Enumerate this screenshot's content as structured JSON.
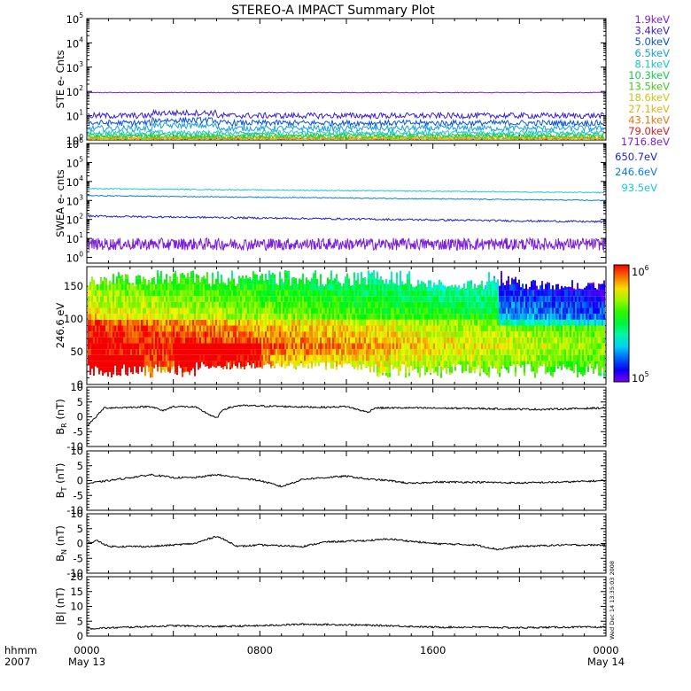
{
  "title": "STEREO-A IMPACT Summary Plot",
  "time_axis": {
    "row1_labels": [
      "0000",
      "0800",
      "1600",
      "0000"
    ],
    "row2_labels": [
      "May 13",
      "",
      "",
      "May 14"
    ],
    "hours": [
      0,
      8,
      16,
      24
    ],
    "corner_top": "hhmm",
    "corner_bottom": "2007"
  },
  "stamp": "Wed Dec 14 13:35:03 2008",
  "colors": {
    "ste_legend": [
      "#7b1fd9",
      "#3a1fd0",
      "#0a52d6",
      "#1a9fd8",
      "#18c8c8",
      "#19c84a",
      "#44c81e",
      "#c8c81e",
      "#e2b41a",
      "#e27a12",
      "#d81e1e"
    ],
    "swea_legend": [
      "#7b1fd9",
      "#1a1fd0",
      "#0a7ee0",
      "#18c8d8"
    ]
  },
  "chart_data": [
    {
      "panel": "STE",
      "type": "line",
      "ylabel": "STE e- Cnts",
      "yscale": "log",
      "ylim": [
        1,
        100000
      ],
      "y_ticks": [
        {
          "b": "10",
          "e": "0"
        },
        {
          "b": "10",
          "e": "1"
        },
        {
          "b": "10",
          "e": "2"
        },
        {
          "b": "10",
          "e": "3"
        },
        {
          "b": "10",
          "e": "4"
        },
        {
          "b": "10",
          "e": "5"
        }
      ],
      "series": [
        {
          "name": "1.9keV",
          "value": 90
        },
        {
          "name": "3.4keV",
          "value": 10
        },
        {
          "name": "5.0keV",
          "value": 5
        },
        {
          "name": "6.5keV",
          "value": 3
        },
        {
          "name": "8.1keV",
          "value": 2
        },
        {
          "name": "10.3keV",
          "value": 1.6
        },
        {
          "name": "13.5keV",
          "value": 1.35
        },
        {
          "name": "18.6keV",
          "value": 1.2
        },
        {
          "name": "27.1keV",
          "value": 1.1
        },
        {
          "name": "43.1keV",
          "value": 1.05
        },
        {
          "name": "79.0keV",
          "value": 1.0
        }
      ]
    },
    {
      "panel": "SWEA",
      "type": "line",
      "ylabel": "SWEA e- cnts",
      "yscale": "log",
      "ylim": [
        0.5,
        1000000
      ],
      "y_ticks": [
        {
          "b": "10",
          "e": "0"
        },
        {
          "b": "10",
          "e": "1"
        },
        {
          "b": "10",
          "e": "2"
        },
        {
          "b": "10",
          "e": "3"
        },
        {
          "b": "10",
          "e": "4"
        },
        {
          "b": "10",
          "e": "5"
        },
        {
          "b": "10",
          "e": "6"
        }
      ],
      "series": [
        {
          "name": "1716.8eV",
          "start": 5,
          "end": 5
        },
        {
          "name": "650.7eV",
          "start": 150,
          "end": 75
        },
        {
          "name": "246.6eV",
          "start": 1800,
          "end": 1000
        },
        {
          "name": "93.5eV",
          "start": 4200,
          "end": 2600
        }
      ]
    },
    {
      "panel": "pitch-angle",
      "type": "heatmap",
      "ylabel": "246.6 eV",
      "ylim": [
        0,
        180
      ],
      "y_ticks": [
        "0",
        "50",
        "100",
        "150"
      ],
      "colorbar_labels": [
        {
          "b": "10",
          "e": "6"
        },
        {
          "b": "10",
          "e": "5"
        }
      ],
      "colorbar_log_range": [
        5,
        6
      ]
    },
    {
      "panel": "BR",
      "type": "line",
      "ylabel": {
        "base": "B",
        "sub": "R",
        "unit": " (nT)"
      },
      "ylim": [
        -10,
        10
      ],
      "y_ticks": [
        "-10",
        "-5",
        "0",
        "5",
        "10"
      ],
      "points": [
        [
          0,
          -3
        ],
        [
          0.3,
          -1
        ],
        [
          0.8,
          3
        ],
        [
          2,
          3.2
        ],
        [
          3,
          3.5
        ],
        [
          3.5,
          2
        ],
        [
          4,
          3.5
        ],
        [
          5,
          3.3
        ],
        [
          6,
          -0.5
        ],
        [
          6.3,
          2.5
        ],
        [
          7,
          3.8
        ],
        [
          9,
          3.5
        ],
        [
          11,
          3.2
        ],
        [
          12,
          3.5
        ],
        [
          13,
          1.5
        ],
        [
          13.3,
          3
        ],
        [
          15,
          3
        ],
        [
          18,
          2.8
        ],
        [
          21,
          2.5
        ],
        [
          24,
          3
        ]
      ]
    },
    {
      "panel": "BT",
      "type": "line",
      "ylabel": {
        "base": "B",
        "sub": "T",
        "unit": " (nT)"
      },
      "ylim": [
        -10,
        10
      ],
      "y_ticks": [
        "-10",
        "-5",
        "0",
        "5",
        "10"
      ],
      "points": [
        [
          0,
          -1
        ],
        [
          1,
          0
        ],
        [
          2,
          1
        ],
        [
          3,
          2
        ],
        [
          4,
          1
        ],
        [
          5,
          1
        ],
        [
          6,
          2
        ],
        [
          7,
          1
        ],
        [
          8,
          0
        ],
        [
          9,
          -2
        ],
        [
          10,
          0.5
        ],
        [
          11,
          1
        ],
        [
          12,
          1.5
        ],
        [
          13,
          0.5
        ],
        [
          14,
          0
        ],
        [
          15,
          -1
        ],
        [
          16,
          -0.5
        ],
        [
          18,
          -0.5
        ],
        [
          20,
          -0.8
        ],
        [
          22,
          -0.5
        ],
        [
          24,
          0
        ]
      ]
    },
    {
      "panel": "BN",
      "type": "line",
      "ylabel": {
        "base": "B",
        "sub": "N",
        "unit": " (nT)"
      },
      "ylim": [
        -10,
        10
      ],
      "y_ticks": [
        "-10",
        "-5",
        "0",
        "5",
        "10"
      ],
      "points": [
        [
          0,
          0
        ],
        [
          0.5,
          1
        ],
        [
          1,
          -1
        ],
        [
          3,
          -1
        ],
        [
          5,
          0
        ],
        [
          6,
          2.5
        ],
        [
          7,
          -1
        ],
        [
          8,
          -0.5
        ],
        [
          10,
          -1
        ],
        [
          11,
          0.5
        ],
        [
          13,
          1
        ],
        [
          14,
          1.5
        ],
        [
          16,
          0
        ],
        [
          18,
          -0.5
        ],
        [
          19,
          -2
        ],
        [
          20,
          -1
        ],
        [
          22,
          -0.5
        ],
        [
          24,
          -0.5
        ]
      ]
    },
    {
      "panel": "Bmag",
      "type": "line",
      "ylabel": "|B| (nT)",
      "ylim": [
        0,
        20
      ],
      "y_ticks": [
        "0",
        "5",
        "10",
        "15",
        "20"
      ],
      "points": [
        [
          0,
          2.5
        ],
        [
          2,
          3
        ],
        [
          4,
          3.5
        ],
        [
          6,
          3.2
        ],
        [
          8,
          3.5
        ],
        [
          10,
          4
        ],
        [
          12,
          3.8
        ],
        [
          14,
          3.5
        ],
        [
          16,
          3
        ],
        [
          18,
          3
        ],
        [
          20,
          2.8
        ],
        [
          22,
          3
        ],
        [
          24,
          3
        ]
      ]
    }
  ]
}
